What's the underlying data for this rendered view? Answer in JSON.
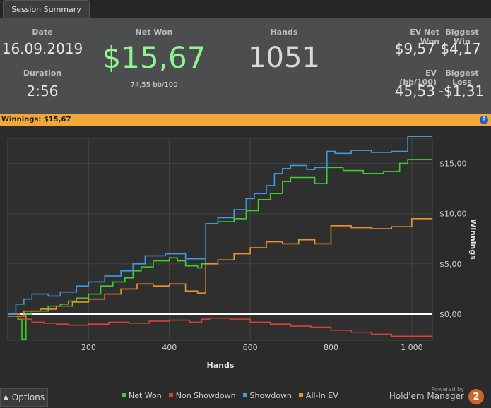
{
  "tab": {
    "label": "Session Summary"
  },
  "summary": {
    "date_label": "Date",
    "date": "16.09.2019",
    "duration_label": "Duration",
    "duration": "2:56",
    "netwon_label": "Net Won",
    "netwon": "$15,67",
    "bb100": "74,55 bb/100",
    "hands_label": "Hands",
    "hands": "1051",
    "evnet_label": "EV Net Won",
    "evnet": "$9,57",
    "bigwin_label": "Biggest Win",
    "bigwin": "$4,17",
    "evbb_label": "EV (bb/100)",
    "evbb": "45,53",
    "bigloss_label": "Biggest Loss",
    "bigloss": "-$1,31"
  },
  "winbar": {
    "text": "Winnings: $15,67",
    "help": "?"
  },
  "colors": {
    "netwon": "#3ecf2e",
    "nonshowdown": "#d9413a",
    "showdown": "#3d9be0",
    "allin": "#f0922b"
  },
  "chart_data": {
    "type": "line",
    "xlabel": "Hands",
    "ylabel": "Winnings",
    "xlim": [
      0,
      1051
    ],
    "ylim": [
      -2.6,
      17.5
    ],
    "xticks": [
      200,
      400,
      600,
      800,
      1000
    ],
    "xtick_labels": [
      "200",
      "400",
      "600",
      "800",
      "1 000"
    ],
    "yticks": [
      0,
      5,
      10,
      15
    ],
    "ytick_labels": [
      "$0,00",
      "$5,00",
      "$10,00",
      "$15,00"
    ],
    "series": [
      {
        "name": "Net Won",
        "color": "#3ecf2e",
        "x": [
          0,
          25,
          35,
          45,
          60,
          100,
          130,
          150,
          170,
          200,
          230,
          260,
          290,
          310,
          330,
          360,
          400,
          420,
          440,
          470,
          480,
          490,
          520,
          560,
          590,
          620,
          650,
          680,
          700,
          760,
          790,
          830,
          880,
          930,
          970,
          990,
          1050
        ],
        "y": [
          0,
          -0.5,
          -2.5,
          0,
          0.3,
          0.8,
          1.0,
          1.3,
          1.6,
          2.0,
          2.8,
          3.2,
          3.6,
          4.3,
          4.7,
          5.3,
          5.6,
          5.3,
          4.8,
          4.6,
          5.0,
          9.0,
          9.2,
          9.5,
          10.3,
          11.4,
          12.0,
          13.2,
          13.6,
          13.0,
          14.6,
          14.3,
          14.0,
          14.2,
          15.0,
          15.4,
          15.5
        ]
      },
      {
        "name": "Non Showdown",
        "color": "#d9413a",
        "x": [
          0,
          30,
          60,
          90,
          120,
          150,
          200,
          250,
          300,
          350,
          400,
          450,
          480,
          500,
          550,
          600,
          650,
          700,
          750,
          800,
          850,
          900,
          950,
          1000,
          1050
        ],
        "y": [
          0,
          -0.5,
          -0.8,
          -0.9,
          -1.0,
          -1.1,
          -1.0,
          -0.8,
          -0.9,
          -0.7,
          -0.6,
          -0.8,
          -0.5,
          -0.4,
          -0.5,
          -0.8,
          -1.0,
          -1.2,
          -1.3,
          -1.6,
          -1.8,
          -2.0,
          -2.2,
          -2.2,
          -2.1
        ]
      },
      {
        "name": "Showdown",
        "color": "#3d9be0",
        "x": [
          0,
          20,
          40,
          60,
          100,
          130,
          170,
          200,
          240,
          280,
          310,
          340,
          390,
          440,
          490,
          520,
          560,
          590,
          610,
          640,
          660,
          680,
          700,
          740,
          760,
          790,
          810,
          850,
          900,
          950,
          990,
          1050
        ],
        "y": [
          0,
          1.0,
          1.5,
          2.0,
          1.8,
          2.2,
          2.8,
          3.2,
          3.8,
          4.3,
          5.0,
          5.8,
          6.0,
          5.5,
          9.0,
          9.6,
          10.4,
          11.5,
          12.0,
          12.8,
          14.0,
          14.5,
          14.8,
          14.4,
          14.6,
          16.2,
          16.0,
          16.3,
          16.1,
          16.2,
          17.7,
          17.7
        ]
      },
      {
        "name": "All-In EV",
        "color": "#f0922b",
        "x": [
          0,
          40,
          80,
          120,
          160,
          200,
          240,
          280,
          320,
          360,
          400,
          440,
          470,
          490,
          520,
          560,
          600,
          640,
          680,
          720,
          760,
          800,
          850,
          900,
          950,
          1000,
          1050
        ],
        "y": [
          -0.2,
          0.3,
          0.5,
          0.8,
          1.2,
          1.5,
          2.0,
          2.5,
          3.0,
          2.8,
          3.0,
          2.3,
          2.1,
          5.0,
          5.4,
          6.0,
          6.6,
          7.2,
          7.0,
          7.4,
          7.0,
          8.8,
          8.6,
          8.5,
          8.7,
          9.5,
          9.4
        ]
      }
    ]
  },
  "footer": {
    "options": "Options",
    "powered": "Powered by",
    "brand": "Hold'em Manager",
    "logo": "2"
  }
}
